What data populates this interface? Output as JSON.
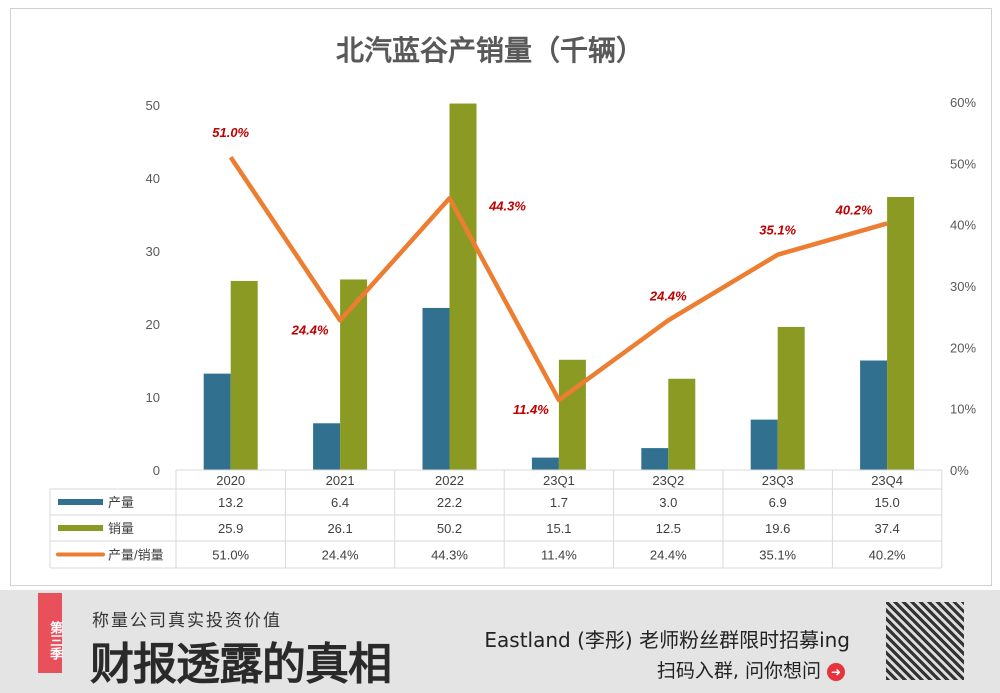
{
  "chart_data": {
    "type": "bar+line",
    "title": "北汽蓝谷产销量（千辆）",
    "categories": [
      "2020",
      "2021",
      "2022",
      "23Q1",
      "23Q2",
      "23Q3",
      "23Q4"
    ],
    "series": [
      {
        "name": "产量",
        "type": "bar",
        "axis": "left",
        "color": "#31708f",
        "values": [
          13.2,
          6.4,
          22.2,
          1.7,
          3.0,
          6.9,
          15.0
        ]
      },
      {
        "name": "销量",
        "type": "bar",
        "axis": "left",
        "color": "#8b9a22",
        "values": [
          25.9,
          26.1,
          50.2,
          15.1,
          12.5,
          19.6,
          37.4
        ]
      },
      {
        "name": "产量/销量",
        "type": "line",
        "axis": "right",
        "color": "#ed7d31",
        "values": [
          51.0,
          24.4,
          44.3,
          11.4,
          24.4,
          35.1,
          40.2
        ],
        "labels": [
          "51.0%",
          "24.4%",
          "44.3%",
          "11.4%",
          "24.4%",
          "35.1%",
          "40.2%"
        ],
        "label_color": "#c00000"
      }
    ],
    "y_left": {
      "range": [
        0,
        50
      ],
      "ticks": [
        "0",
        "10",
        "20",
        "30",
        "40",
        "50"
      ]
    },
    "y_right": {
      "range": [
        0,
        60
      ],
      "ticks": [
        "0%",
        "10%",
        "20%",
        "30%",
        "40%",
        "50%",
        "60%"
      ]
    },
    "grid": false,
    "legend": "data-table",
    "table": {
      "rows": [
        [
          "13.2",
          "6.4",
          "22.2",
          "1.7",
          "3.0",
          "6.9",
          "15.0"
        ],
        [
          "25.9",
          "26.1",
          "50.2",
          "15.1",
          "12.5",
          "19.6",
          "37.4"
        ],
        [
          "51.0%",
          "24.4%",
          "44.3%",
          "11.4%",
          "24.4%",
          "35.1%",
          "40.2%"
        ]
      ]
    }
  },
  "banner": {
    "ribbon": "第三季",
    "slogan": "称量公司真实投资价值",
    "brand": "财报透露的真相",
    "recruit": "Eastland (李彤) 老师粉丝群限时招募ing",
    "scan": "扫码入群, 问你想问",
    "qr_icon": "qr-code"
  }
}
